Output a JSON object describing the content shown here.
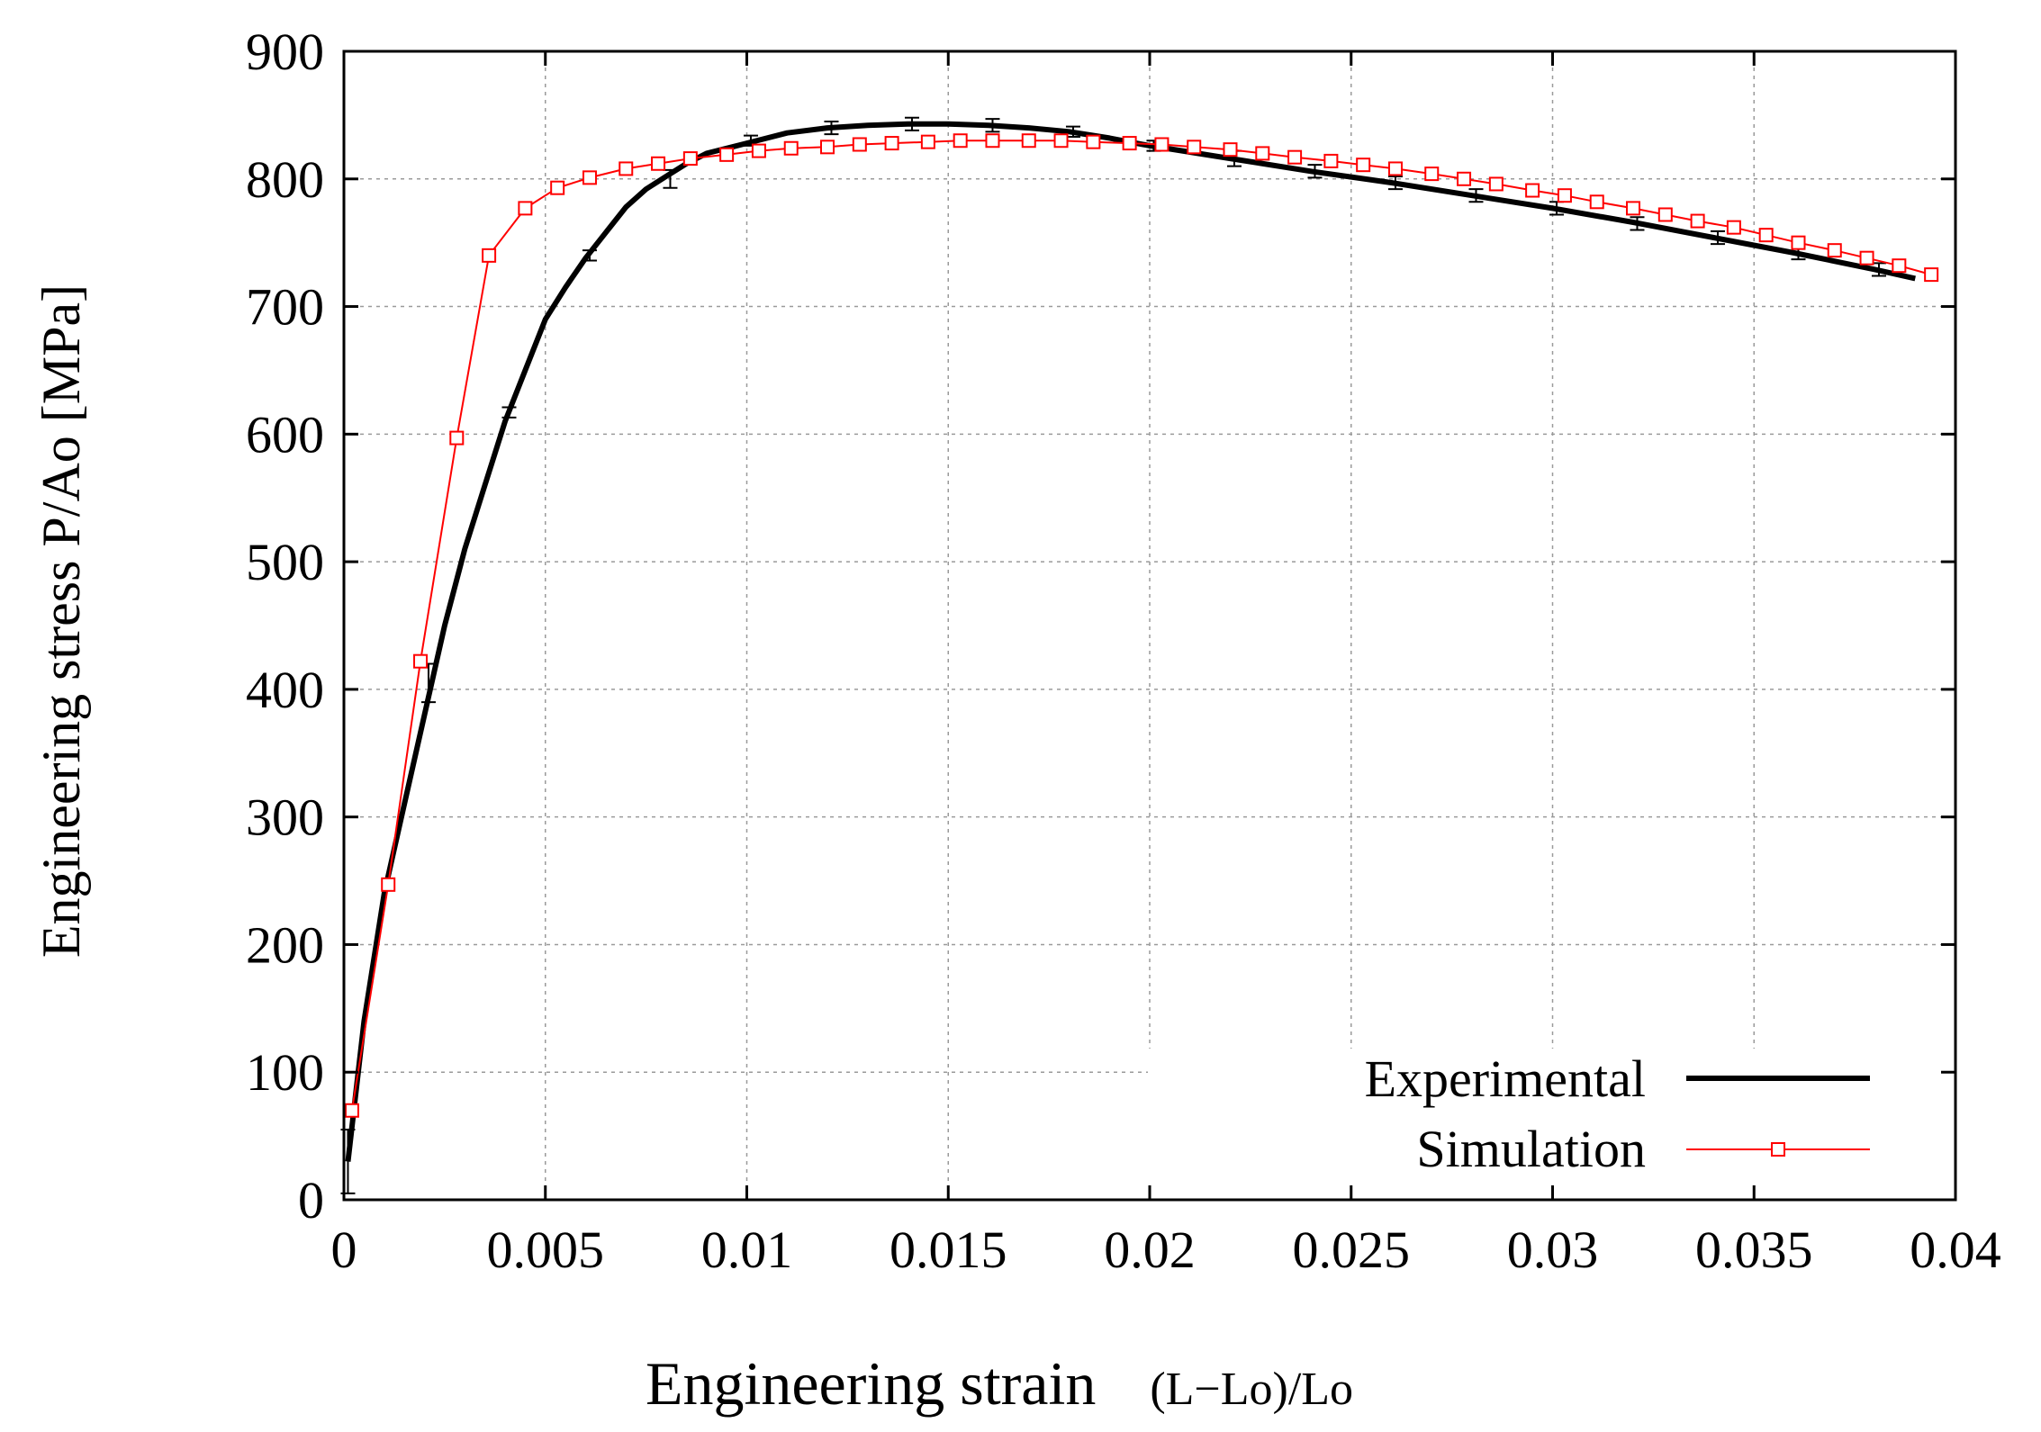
{
  "chart_data": {
    "type": "line",
    "title": "",
    "xlabel_main": "Engineering strain",
    "xlabel_formula": "(L−Lo)/Lo",
    "ylabel": "Engineering stress P/Ao [MPa]",
    "xlim": [
      0,
      0.04
    ],
    "ylim": [
      0,
      900
    ],
    "grid": true,
    "legend_position": "bottom-right",
    "x_ticks": [
      {
        "value": 0,
        "label": "0"
      },
      {
        "value": 0.005,
        "label": "0.005"
      },
      {
        "value": 0.01,
        "label": "0.01"
      },
      {
        "value": 0.015,
        "label": "0.015"
      },
      {
        "value": 0.02,
        "label": "0.02"
      },
      {
        "value": 0.025,
        "label": "0.025"
      },
      {
        "value": 0.03,
        "label": "0.03"
      },
      {
        "value": 0.035,
        "label": "0.035"
      },
      {
        "value": 0.04,
        "label": "0.04"
      }
    ],
    "y_ticks": [
      {
        "value": 0,
        "label": "0"
      },
      {
        "value": 100,
        "label": "100"
      },
      {
        "value": 200,
        "label": "200"
      },
      {
        "value": 300,
        "label": "300"
      },
      {
        "value": 400,
        "label": "400"
      },
      {
        "value": 500,
        "label": "500"
      },
      {
        "value": 600,
        "label": "600"
      },
      {
        "value": 700,
        "label": "700"
      },
      {
        "value": 800,
        "label": "800"
      },
      {
        "value": 900,
        "label": "900"
      }
    ],
    "series": [
      {
        "name": "Experimental",
        "color": "#000000",
        "style": "line",
        "x": [
          0.0001,
          0.0005,
          0.001,
          0.0015,
          0.002,
          0.0025,
          0.003,
          0.0035,
          0.004,
          0.0045,
          0.005,
          0.0055,
          0.006,
          0.0065,
          0.007,
          0.0075,
          0.008,
          0.0085,
          0.009,
          0.0095,
          0.01,
          0.011,
          0.012,
          0.013,
          0.014,
          0.015,
          0.016,
          0.017,
          0.018,
          0.019,
          0.02,
          0.021,
          0.022,
          0.024,
          0.026,
          0.028,
          0.03,
          0.032,
          0.034,
          0.036,
          0.038,
          0.039
        ],
        "y": [
          30,
          140,
          240,
          310,
          380,
          450,
          510,
          560,
          610,
          650,
          690,
          715,
          738,
          758,
          778,
          792,
          802,
          812,
          820,
          824,
          828,
          836,
          840,
          842,
          843,
          843,
          842,
          840,
          837,
          832,
          826,
          821,
          816,
          806,
          797,
          787,
          777,
          766,
          754,
          742,
          729,
          722
        ],
        "error_bars": [
          {
            "x": 0.0001,
            "y": 30,
            "err": 25
          },
          {
            "x": 0.0021,
            "y": 405,
            "err": 15
          },
          {
            "x": 0.0041,
            "y": 617,
            "err": 4
          },
          {
            "x": 0.0061,
            "y": 740,
            "err": 4
          },
          {
            "x": 0.0081,
            "y": 800,
            "err": 7
          },
          {
            "x": 0.0101,
            "y": 830,
            "err": 4
          },
          {
            "x": 0.0121,
            "y": 840,
            "err": 5
          },
          {
            "x": 0.0141,
            "y": 843,
            "err": 5
          },
          {
            "x": 0.0161,
            "y": 842,
            "err": 5
          },
          {
            "x": 0.0181,
            "y": 837,
            "err": 4
          },
          {
            "x": 0.0201,
            "y": 826,
            "err": 4
          },
          {
            "x": 0.0221,
            "y": 816,
            "err": 6
          },
          {
            "x": 0.0241,
            "y": 806,
            "err": 5
          },
          {
            "x": 0.0261,
            "y": 797,
            "err": 5
          },
          {
            "x": 0.0281,
            "y": 787,
            "err": 5
          },
          {
            "x": 0.0301,
            "y": 777,
            "err": 5
          },
          {
            "x": 0.0321,
            "y": 765,
            "err": 5
          },
          {
            "x": 0.0341,
            "y": 754,
            "err": 5
          },
          {
            "x": 0.0361,
            "y": 742,
            "err": 5
          },
          {
            "x": 0.0381,
            "y": 729,
            "err": 5
          }
        ]
      },
      {
        "name": "Simulation",
        "color": "#ff0000",
        "style": "line-square-markers",
        "x": [
          0.0002,
          0.0011,
          0.0019,
          0.0028,
          0.0036,
          0.0045,
          0.0053,
          0.0061,
          0.007,
          0.0078,
          0.0086,
          0.0095,
          0.0103,
          0.0111,
          0.012,
          0.0128,
          0.0136,
          0.0145,
          0.0153,
          0.0161,
          0.017,
          0.0178,
          0.0186,
          0.0195,
          0.0203,
          0.0211,
          0.022,
          0.0228,
          0.0236,
          0.0245,
          0.0253,
          0.0261,
          0.027,
          0.0278,
          0.0286,
          0.0295,
          0.0303,
          0.0311,
          0.032,
          0.0328,
          0.0336,
          0.0345,
          0.0353,
          0.0361,
          0.037,
          0.0378,
          0.0386,
          0.0394
        ],
        "y": [
          70,
          247,
          422,
          597,
          740,
          777,
          793,
          801,
          808,
          812,
          816,
          819,
          822,
          824,
          825,
          827,
          828,
          829,
          830,
          830,
          830,
          830,
          829,
          828,
          827,
          825,
          823,
          820,
          817,
          814,
          811,
          808,
          804,
          800,
          796,
          791,
          787,
          782,
          777,
          772,
          767,
          762,
          756,
          750,
          744,
          738,
          732,
          725
        ]
      }
    ]
  },
  "legend": {
    "items": [
      {
        "label": "Experimental"
      },
      {
        "label": "Simulation"
      }
    ]
  }
}
